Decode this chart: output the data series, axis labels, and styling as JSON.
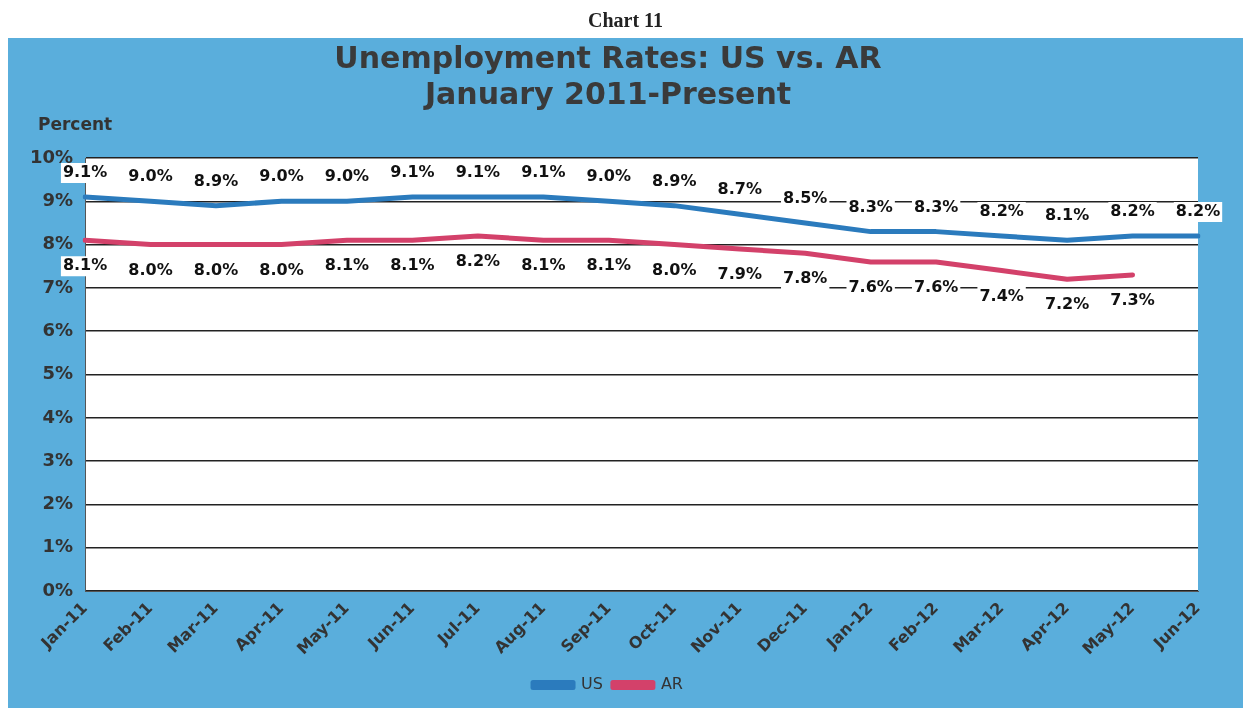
{
  "chart_data": {
    "type": "line",
    "title": [
      "Unemployment Rates: US vs. AR",
      "January 2011-Present"
    ],
    "ylabel": "Percent",
    "annotations": [
      "Chart 11"
    ],
    "categories": [
      "Jan-11",
      "Feb-11",
      "Mar-11",
      "Apr-11",
      "May-11",
      "Jun-11",
      "Jul-11",
      "Aug-11",
      "Sep-11",
      "Oct-11",
      "Nov-11",
      "Dec-11",
      "Jan-12",
      "Feb-12",
      "Mar-12",
      "Apr-12",
      "May-12",
      "Jun-12"
    ],
    "series": [
      {
        "name": "US",
        "color": "#2b7bbd",
        "values": [
          9.1,
          9.0,
          8.9,
          9.0,
          9.0,
          9.1,
          9.1,
          9.1,
          9.0,
          8.9,
          8.7,
          8.5,
          8.3,
          8.3,
          8.2,
          8.1,
          8.2,
          8.2
        ],
        "value_labels": [
          "9.1%",
          "9.0%",
          "8.9%",
          "9.0%",
          "9.0%",
          "9.1%",
          "9.1%",
          "9.1%",
          "9.0%",
          "8.9%",
          "8.7%",
          "8.5%",
          "8.3%",
          "8.3%",
          "8.2%",
          "8.1%",
          "8.2%",
          "8.2%"
        ]
      },
      {
        "name": "AR",
        "color": "#d3416a",
        "values": [
          8.1,
          8.0,
          8.0,
          8.0,
          8.1,
          8.1,
          8.2,
          8.1,
          8.1,
          8.0,
          7.9,
          7.8,
          7.6,
          7.6,
          7.4,
          7.2,
          7.3,
          null
        ],
        "value_labels": [
          "8.1%",
          "8.0%",
          "8.0%",
          "8.0%",
          "8.1%",
          "8.1%",
          "8.2%",
          "8.1%",
          "8.1%",
          "8.0%",
          "7.9%",
          "7.8%",
          "7.6%",
          "7.6%",
          "7.4%",
          "7.2%",
          "7.3%",
          null
        ]
      }
    ],
    "ylim": [
      0,
      10
    ],
    "yticks": [
      {
        "value": 0,
        "label": "0%"
      },
      {
        "value": 1,
        "label": "1%"
      },
      {
        "value": 2,
        "label": "2%"
      },
      {
        "value": 3,
        "label": "3%"
      },
      {
        "value": 4,
        "label": "4%"
      },
      {
        "value": 5,
        "label": "5%"
      },
      {
        "value": 6,
        "label": "6%"
      },
      {
        "value": 7,
        "label": "7%"
      },
      {
        "value": 8,
        "label": "8%"
      },
      {
        "value": 9,
        "label": "9%"
      },
      {
        "value": 10,
        "label": "10%"
      }
    ],
    "grid": "y",
    "legend": "bottom",
    "marker": "none",
    "line_style": "solid"
  }
}
